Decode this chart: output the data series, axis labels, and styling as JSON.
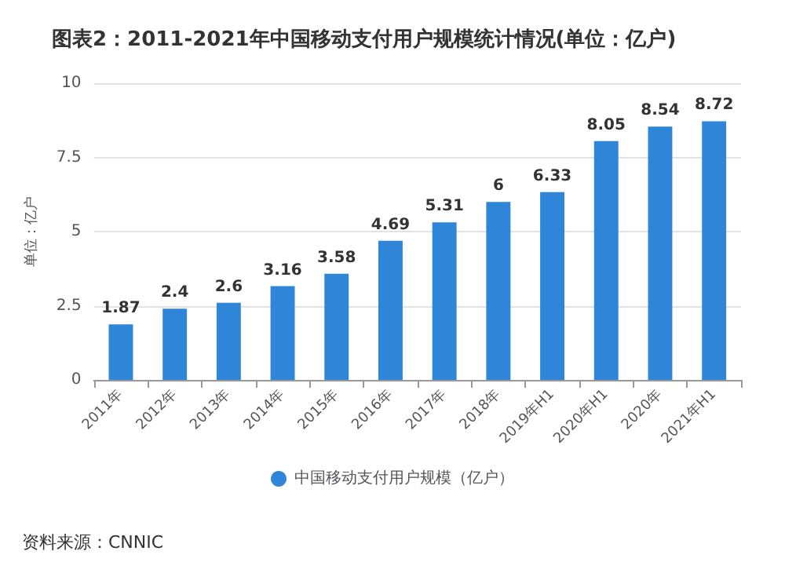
{
  "chart_data": {
    "type": "bar",
    "title": "图表2：2011-2021年中国移动支付用户规模统计情况(单位：亿户)",
    "ylabel": "单位：亿户",
    "categories": [
      "2011年",
      "2012年",
      "2013年",
      "2014年",
      "2015年",
      "2016年",
      "2017年",
      "2018年",
      "2019年H1",
      "2020年H1",
      "2020年",
      "2021年H1"
    ],
    "series": [
      {
        "name": "中国移动支付用户规模（亿户）",
        "color": "#2f86d8",
        "values": [
          1.87,
          2.4,
          2.6,
          3.16,
          3.58,
          4.69,
          5.31,
          6,
          6.33,
          8.05,
          8.54,
          8.72
        ]
      }
    ],
    "ylim": [
      0,
      10
    ],
    "yticks": [
      0,
      2.5,
      5,
      7.5,
      10
    ],
    "grid": "y",
    "legend": "bottom",
    "data_labels": true,
    "annotations": [
      "资料来源：CNNIC"
    ]
  }
}
